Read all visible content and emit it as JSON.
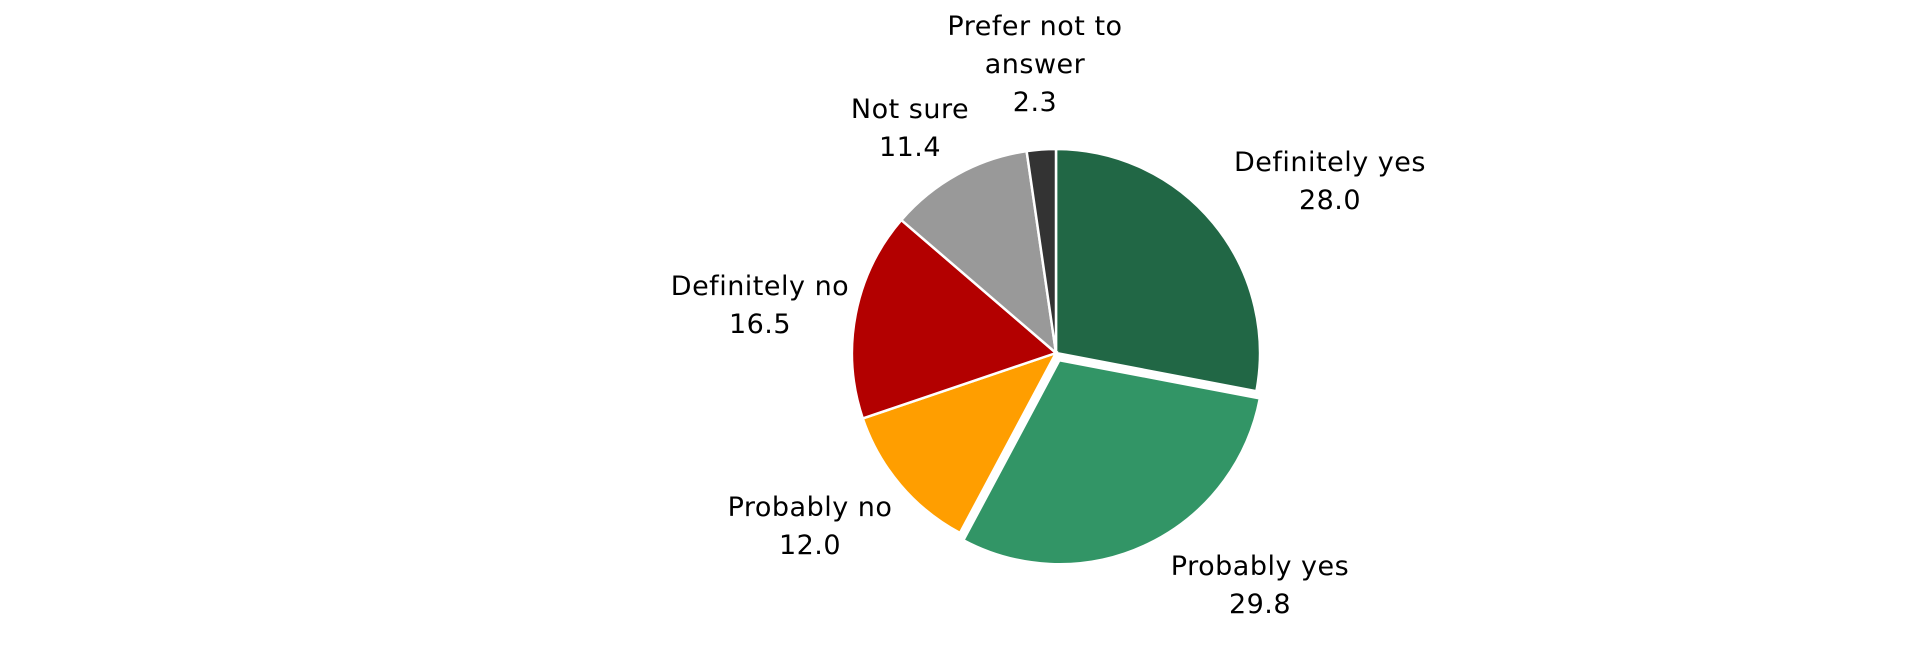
{
  "chart_data": {
    "type": "pie",
    "title": "",
    "start_angle_deg": 0,
    "direction": "clockwise",
    "categories": [
      "Definitely yes",
      "Probably yes",
      "Probably no",
      "Definitely no",
      "Not sure",
      "Prefer not to answer"
    ],
    "values": [
      28.0,
      29.8,
      12.0,
      16.5,
      11.4,
      2.3
    ],
    "colors": [
      "#216745",
      "#329566",
      "#FF9E00",
      "#B30000",
      "#999999",
      "#333333"
    ],
    "exploded": [
      "Probably yes"
    ],
    "data_labels": [
      {
        "name": "Definitely yes",
        "value": "28.0"
      },
      {
        "name": "Probably yes",
        "value": "29.8"
      },
      {
        "name": "Probably no",
        "value": "12.0"
      },
      {
        "name": "Definitely no",
        "value": "16.5"
      },
      {
        "name": "Not sure",
        "value": "11.4"
      },
      {
        "name_lines": [
          "Prefer not to",
          "answer"
        ],
        "name": "Prefer not to answer",
        "value": "2.3"
      }
    ],
    "legend": "none (data labels used)"
  },
  "labels": {
    "definitely_yes": {
      "name": "Definitely yes",
      "value": "28.0"
    },
    "probably_yes": {
      "name": "Probably yes",
      "value": "29.8"
    },
    "probably_no": {
      "name": "Probably no",
      "value": "12.0"
    },
    "definitely_no": {
      "name": "Definitely no",
      "value": "16.5"
    },
    "not_sure": {
      "name": "Not sure",
      "value": "11.4"
    },
    "prefer_not": {
      "line1": "Prefer not to",
      "line2": "answer",
      "value": "2.3"
    }
  }
}
